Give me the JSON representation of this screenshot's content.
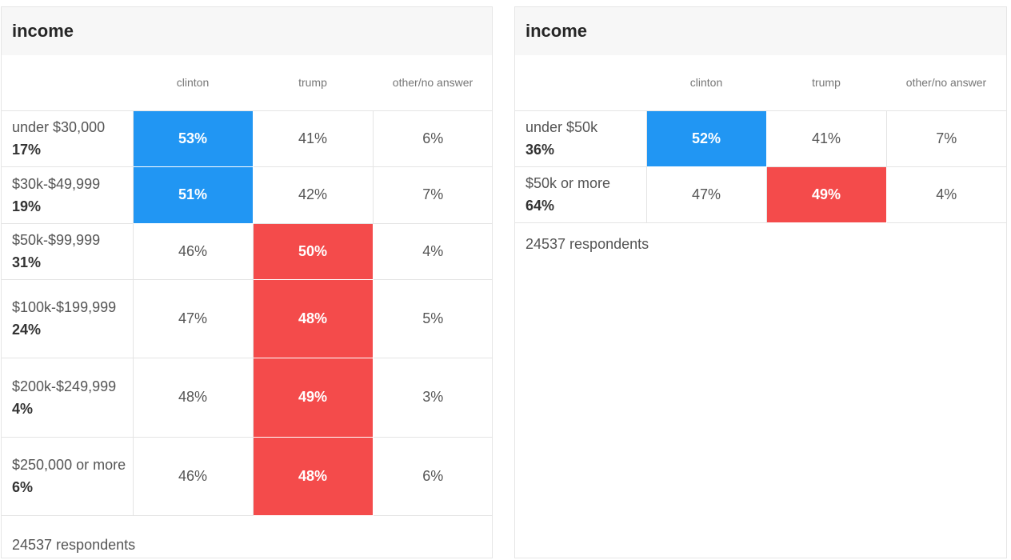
{
  "colors": {
    "clinton_win": "#2196f3",
    "trump_win": "#f44b4b"
  },
  "chart_data": [
    {
      "type": "table",
      "title": "income",
      "columns": [
        "clinton",
        "trump",
        "other/no answer"
      ],
      "rows": [
        {
          "label": "under $30,000",
          "share": "17%",
          "values": [
            "53%",
            "41%",
            "6%"
          ],
          "winner": "clinton",
          "height": 70
        },
        {
          "label": "$30k-$49,999",
          "share": "19%",
          "values": [
            "51%",
            "42%",
            "7%"
          ],
          "winner": "clinton",
          "height": 71
        },
        {
          "label": "$50k-$99,999",
          "share": "31%",
          "values": [
            "46%",
            "50%",
            "4%"
          ],
          "winner": "trump",
          "height": 70
        },
        {
          "label": "$100k-$199,999",
          "share": "24%",
          "values": [
            "47%",
            "48%",
            "5%"
          ],
          "winner": "trump",
          "height": 98
        },
        {
          "label": "$200k-$249,999",
          "share": "4%",
          "values": [
            "48%",
            "49%",
            "3%"
          ],
          "winner": "trump",
          "height": 99
        },
        {
          "label": "$250,000 or more",
          "share": "6%",
          "values": [
            "46%",
            "48%",
            "6%"
          ],
          "winner": "trump",
          "height": 98
        }
      ],
      "footer": "24537 respondents"
    },
    {
      "type": "table",
      "title": "income",
      "columns": [
        "clinton",
        "trump",
        "other/no answer"
      ],
      "rows": [
        {
          "label": "under $50k",
          "share": "36%",
          "values": [
            "52%",
            "41%",
            "7%"
          ],
          "winner": "clinton",
          "height": 70
        },
        {
          "label": "$50k or more",
          "share": "64%",
          "values": [
            "47%",
            "49%",
            "4%"
          ],
          "winner": "trump",
          "height": 70
        }
      ],
      "footer": "24537 respondents"
    }
  ]
}
